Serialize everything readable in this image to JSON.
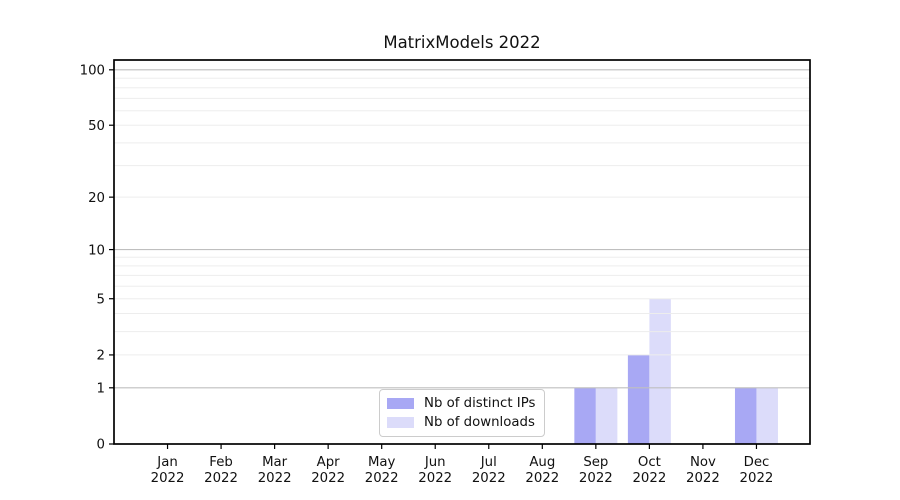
{
  "chart_data": {
    "type": "bar",
    "title": "MatrixModels 2022",
    "categories": [
      "Jan",
      "Feb",
      "Mar",
      "Apr",
      "May",
      "Jun",
      "Jul",
      "Aug",
      "Sep",
      "Oct",
      "Nov",
      "Dec"
    ],
    "category_year": "2022",
    "series": [
      {
        "name": "Nb of distinct IPs",
        "color": "#a8a8f4",
        "values": [
          0,
          0,
          0,
          0,
          0,
          0,
          0,
          0,
          1,
          2,
          0,
          1
        ]
      },
      {
        "name": "Nb of downloads",
        "color": "#dcdcfa",
        "values": [
          0,
          0,
          0,
          0,
          0,
          0,
          0,
          0,
          1,
          5,
          0,
          1
        ]
      }
    ],
    "yscale": "log1p",
    "ylim": [
      0,
      113
    ],
    "yticks": [
      0,
      1,
      2,
      5,
      10,
      20,
      50,
      100
    ],
    "grid": {
      "major": [
        1,
        10,
        100
      ],
      "minor": [
        2,
        3,
        4,
        5,
        6,
        7,
        8,
        9,
        20,
        30,
        40,
        50,
        60,
        70,
        80,
        90
      ],
      "major_color": "#bfbfbf",
      "minor_color": "#ededed"
    },
    "xlabel": "",
    "ylabel": "",
    "legend_position": "lower center-left",
    "spine_color": "#000000"
  }
}
